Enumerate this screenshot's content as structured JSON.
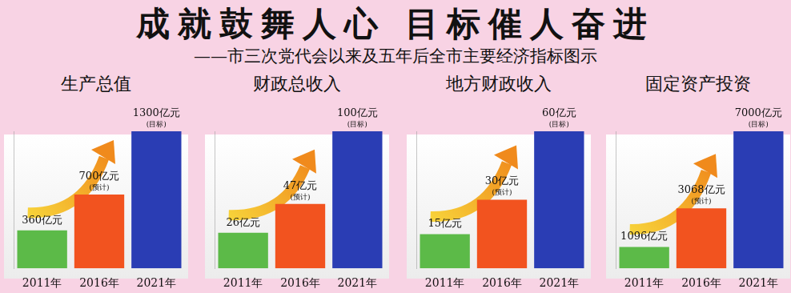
{
  "title": "成就鼓舞人心  目标催人奋进",
  "subtitle": "——市三次党代会以来及五年后全市主要经济指标图示",
  "chart_data": [
    {
      "type": "bar",
      "title": "生产总值",
      "categories": [
        "2011年",
        "2016年",
        "2021年"
      ],
      "values": [
        360,
        700,
        1300
      ],
      "value_labels": [
        "360亿元",
        "700亿元",
        "1300亿元"
      ],
      "annotations": [
        null,
        "(预计)",
        "(目标)"
      ],
      "colors": [
        "#5cba48",
        "#f2531f",
        "#2a3db4"
      ],
      "ylim": [
        0,
        1300
      ],
      "data_labels": true,
      "tick_labels": "x",
      "grid": false
    },
    {
      "type": "bar",
      "title": "财政总收入",
      "categories": [
        "2011年",
        "2016年",
        "2021年"
      ],
      "values": [
        26,
        47,
        100
      ],
      "value_labels": [
        "26亿元",
        "47亿元",
        "100亿元"
      ],
      "annotations": [
        null,
        "(预计)",
        "(目标)"
      ],
      "colors": [
        "#5cba48",
        "#f2531f",
        "#2a3db4"
      ],
      "ylim": [
        0,
        100
      ],
      "data_labels": true,
      "tick_labels": "x",
      "grid": false
    },
    {
      "type": "bar",
      "title": "地方财政收入",
      "categories": [
        "2011年",
        "2016年",
        "2021年"
      ],
      "values": [
        15,
        30,
        60
      ],
      "value_labels": [
        "15亿元",
        "30亿元",
        "60亿元"
      ],
      "annotations": [
        null,
        "(预计)",
        "(目标)"
      ],
      "colors": [
        "#5cba48",
        "#f2531f",
        "#2a3db4"
      ],
      "ylim": [
        0,
        60
      ],
      "data_labels": true,
      "tick_labels": "x",
      "grid": false
    },
    {
      "type": "bar",
      "title": "固定资产投资",
      "categories": [
        "2011年",
        "2016年",
        "2021年"
      ],
      "values": [
        1096,
        3068,
        7000
      ],
      "value_labels": [
        "1096亿元",
        "3068亿元",
        "7000亿元"
      ],
      "annotations": [
        null,
        "(预计)",
        "(目标)"
      ],
      "colors": [
        "#5cba48",
        "#f2531f",
        "#2a3db4"
      ],
      "ylim": [
        0,
        7000
      ],
      "data_labels": true,
      "tick_labels": "x",
      "grid": false
    }
  ]
}
